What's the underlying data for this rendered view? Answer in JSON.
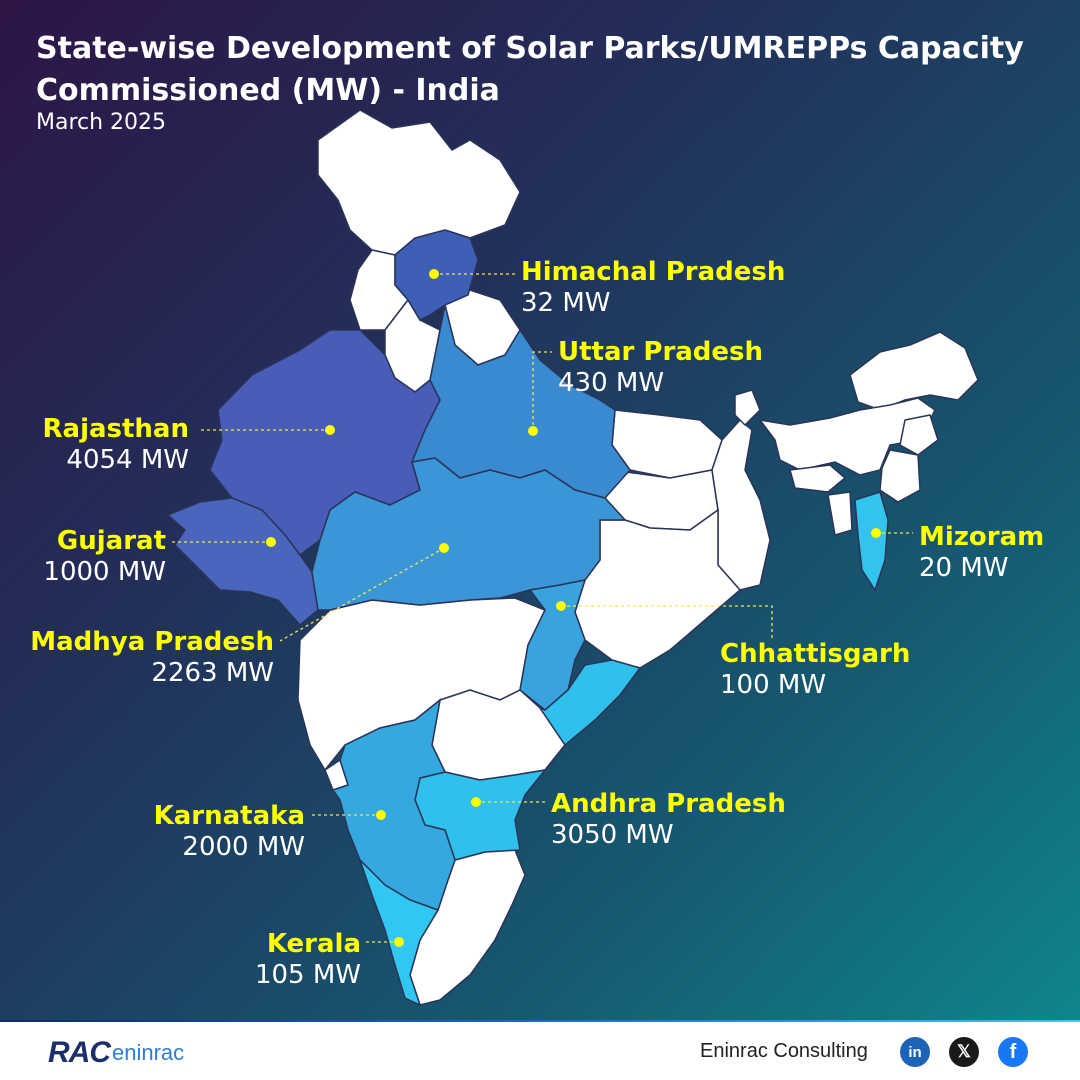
{
  "header": {
    "title": "State-wise Development of Solar Parks/UMREPPs Capacity Commissioned (MW) - India",
    "subtitle": "March 2025"
  },
  "colors": {
    "label": "#ffff00",
    "value": "#ffffff",
    "leader": "#f2e84b",
    "land": "#ffffff",
    "border": "#2a3458"
  },
  "states": [
    {
      "key": "himachal",
      "name": "Himachal Pradesh",
      "value": "32 MW",
      "fill": "#3d5fb6"
    },
    {
      "key": "uttar",
      "name": "Uttar Pradesh",
      "value": "430 MW",
      "fill": "#3a8ad2"
    },
    {
      "key": "rajasthan",
      "name": "Rajasthan",
      "value": "4054 MW",
      "fill": "#485cb8"
    },
    {
      "key": "gujarat",
      "name": "Gujarat",
      "value": "1000 MW",
      "fill": "#4a66bc"
    },
    {
      "key": "madhya",
      "name": "Madhya Pradesh",
      "value": "2263 MW",
      "fill": "#3b96d8"
    },
    {
      "key": "chhattisgarh",
      "name": "Chhattisgarh",
      "value": "100 MW",
      "fill": "#39a3de"
    },
    {
      "key": "mizoram",
      "name": "Mizoram",
      "value": "20 MW",
      "fill": "#33c4ee"
    },
    {
      "key": "karnataka",
      "name": "Karnataka",
      "value": "2000 MW",
      "fill": "#36a8e0"
    },
    {
      "key": "andhra",
      "name": "Andhra Pradesh",
      "value": "3050 MW",
      "fill": "#2fc0ec"
    },
    {
      "key": "kerala",
      "name": "Kerala",
      "value": "105 MW",
      "fill": "#30c8f2"
    }
  ],
  "footer": {
    "logo_mark": "RAC",
    "logo_name": "eninrac",
    "brand": "Eninrac Consulting",
    "social": [
      {
        "name": "linkedin-icon",
        "glyph": "in"
      },
      {
        "name": "x-icon",
        "glyph": "𝕏"
      },
      {
        "name": "facebook-icon",
        "glyph": "f"
      }
    ]
  }
}
